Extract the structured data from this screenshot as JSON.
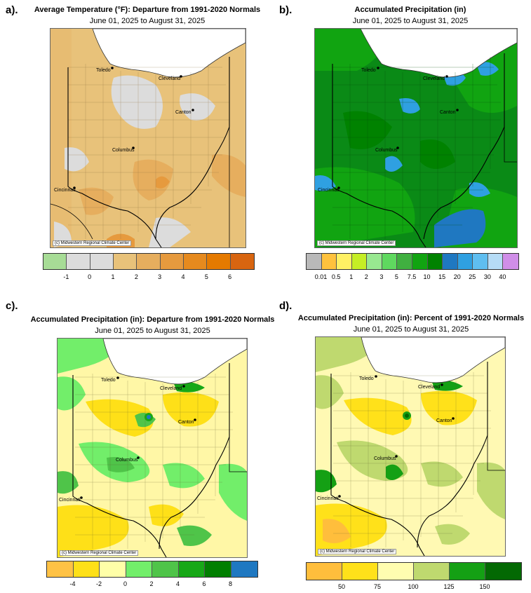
{
  "panels": [
    {
      "letter": "a).",
      "title": "Average Temperature (°F): Departure from 1991-2020 Normals",
      "date_range": "June 01, 2025 to August 31, 2025",
      "credit": "(c) Midwestern Regional Climate Center",
      "base_color": "#e8c27a",
      "legend": {
        "colors": [
          "#a7dc96",
          "#dcdcdc",
          "#dcdcdc",
          "#e8c27a",
          "#e6ae5e",
          "#e69a3e",
          "#e68a1e",
          "#e57a00",
          "#d86510"
        ],
        "labels": [
          "-1",
          "0",
          "1",
          "2",
          "3",
          "4",
          "5",
          "6"
        ]
      }
    },
    {
      "letter": "b).",
      "title": "Accumulated Precipitation (in)",
      "date_range": "June 01, 2025 to August 31, 2025",
      "credit": "(c) Midwestern Regional Climate Center",
      "base_color": "#0a8a16",
      "legend": {
        "colors": [
          "#b9b9b9",
          "#ffc23d",
          "#fff164",
          "#c5ee25",
          "#98e890",
          "#5fd95f",
          "#40b040",
          "#11a411",
          "#008200",
          "#1f78c1",
          "#2fa0e1",
          "#5fbef0",
          "#b6dcf6",
          "#d08ee8"
        ],
        "labels": [
          "0.01",
          "0.5",
          "1",
          "2",
          "3",
          "5",
          "7.5",
          "10",
          "15",
          "20",
          "25",
          "30",
          "40"
        ]
      }
    },
    {
      "letter": "c).",
      "title": "Accumulated Precipitation (in): Departure from 1991-2020 Normals",
      "date_range": "June 01, 2025 to August 31, 2025",
      "credit": "(c) Midwestern Regional Climate Center",
      "base_color": "#fff7a6",
      "legend": {
        "colors": [
          "#ffc245",
          "#fee018",
          "#ffffa8",
          "#72ee6a",
          "#4fc449",
          "#17a817",
          "#017f01",
          "#1f78c1"
        ],
        "labels": [
          "-4",
          "-2",
          "0",
          "2",
          "4",
          "6",
          "8"
        ]
      }
    },
    {
      "letter": "d).",
      "title": "Accumulated Precipitation (in): Percent of 1991-2020 Normals",
      "date_range": "June 01, 2025 to August 31, 2025",
      "credit": "(c) Midwestern Regional Climate Center",
      "base_color": "#fff9b3",
      "legend": {
        "colors": [
          "#ffbe3c",
          "#ffe11a",
          "#fffdb0",
          "#bfd96f",
          "#14a014",
          "#036903"
        ],
        "labels": [
          "50",
          "75",
          "100",
          "125",
          "150"
        ]
      }
    }
  ],
  "cities": [
    "Toledo",
    "Cleveland",
    "Canton",
    "Columbus",
    "Cincinnati"
  ]
}
